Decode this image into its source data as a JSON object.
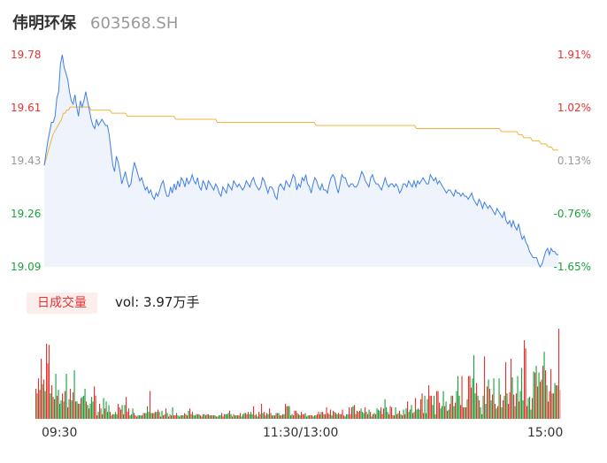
{
  "header": {
    "name": "伟明环保",
    "code": "603568.SH"
  },
  "colors": {
    "up": "#e8322f",
    "down": "#1aa23a",
    "neutral": "#999999",
    "price_line": "#3f7fe6",
    "avg_line": "#f2b33d",
    "area_fill": "#eef3fc"
  },
  "volume_panel": {
    "tab_label": "日成交量",
    "summary": "vol: 3.97万手"
  },
  "chart_data": [
    {
      "type": "line",
      "title": "",
      "y_left_ticks": [
        "19.78",
        "19.61",
        "19.43",
        "19.26",
        "19.09"
      ],
      "y_right_ticks": [
        "1.91%",
        "1.02%",
        "0.13%",
        "-0.76%",
        "-1.65%"
      ],
      "ylim": [
        19.09,
        19.78
      ],
      "prev_close": 19.405,
      "x_ticks": [
        "09:30",
        "11:30/13:00",
        "15:00"
      ],
      "grid": false,
      "series": [
        {
          "role": "price",
          "values": [
            19.42,
            19.46,
            19.5,
            19.53,
            19.56,
            19.56,
            19.58,
            19.64,
            19.66,
            19.75,
            19.78,
            19.74,
            19.72,
            19.7,
            19.66,
            19.63,
            19.62,
            19.65,
            19.61,
            19.58,
            19.63,
            19.61,
            19.63,
            19.66,
            19.63,
            19.6,
            19.57,
            19.55,
            19.54,
            19.57,
            19.55,
            19.56,
            19.57,
            19.56,
            19.55,
            19.55,
            19.52,
            19.47,
            19.42,
            19.4,
            19.45,
            19.43,
            19.4,
            19.36,
            19.38,
            19.4,
            19.37,
            19.35,
            19.36,
            19.4,
            19.43,
            19.41,
            19.39,
            19.37,
            19.38,
            19.36,
            19.34,
            19.35,
            19.33,
            19.34,
            19.32,
            19.31,
            19.33,
            19.32,
            19.34,
            19.36,
            19.37,
            19.34,
            19.32,
            19.32,
            19.35,
            19.33,
            19.36,
            19.34,
            19.37,
            19.35,
            19.38,
            19.37,
            19.35,
            19.38,
            19.36,
            19.37,
            19.39,
            19.37,
            19.36,
            19.38,
            19.35,
            19.34,
            19.37,
            19.36,
            19.34,
            19.37,
            19.36,
            19.35,
            19.34,
            19.36,
            19.35,
            19.33,
            19.32,
            19.35,
            19.34,
            19.33,
            19.36,
            19.35,
            19.34,
            19.37,
            19.36,
            19.35,
            19.36,
            19.35,
            19.34,
            19.35,
            19.37,
            19.36,
            19.35,
            19.37,
            19.38,
            19.36,
            19.35,
            19.34,
            19.35,
            19.38,
            19.37,
            19.35,
            19.33,
            19.35,
            19.35,
            19.34,
            19.32,
            19.31,
            19.35,
            19.36,
            19.35,
            19.34,
            19.37,
            19.36,
            19.35,
            19.37,
            19.39,
            19.38,
            19.34,
            19.36,
            19.35,
            19.38,
            19.37,
            19.39,
            19.36,
            19.35,
            19.33,
            19.36,
            19.38,
            19.37,
            19.35,
            19.34,
            19.36,
            19.34,
            19.34,
            19.33,
            19.36,
            19.38,
            19.39,
            19.38,
            19.35,
            19.33,
            19.36,
            19.39,
            19.38,
            19.38,
            19.36,
            19.35,
            19.36,
            19.36,
            19.35,
            19.35,
            19.36,
            19.38,
            19.4,
            19.39,
            19.37,
            19.36,
            19.35,
            19.38,
            19.39,
            19.37,
            19.36,
            19.36,
            19.35,
            19.34,
            19.36,
            19.38,
            19.36,
            19.35,
            19.36,
            19.36,
            19.35,
            19.36,
            19.35,
            19.33,
            19.34,
            19.36,
            19.36,
            19.35,
            19.37,
            19.36,
            19.35,
            19.37,
            19.35,
            19.37,
            19.36,
            19.37,
            19.38,
            19.37,
            19.36,
            19.36,
            19.39,
            19.38,
            19.37,
            19.38,
            19.36,
            19.37,
            19.36,
            19.35,
            19.34,
            19.33,
            19.34,
            19.34,
            19.33,
            19.32,
            19.34,
            19.33,
            19.33,
            19.32,
            19.33,
            19.32,
            19.32,
            19.31,
            19.32,
            19.33,
            19.31,
            19.3,
            19.29,
            19.31,
            19.3,
            19.28,
            19.3,
            19.29,
            19.28,
            19.29,
            19.28,
            19.27,
            19.26,
            19.28,
            19.27,
            19.26,
            19.25,
            19.27,
            19.24,
            19.23,
            19.24,
            19.22,
            19.24,
            19.22,
            19.21,
            19.23,
            19.2,
            19.18,
            19.19,
            19.17,
            19.16,
            19.14,
            19.13,
            19.12,
            19.12,
            19.12,
            19.1,
            19.09,
            19.1,
            19.12,
            19.14,
            19.15,
            19.13,
            19.15,
            19.14,
            19.14,
            19.13,
            19.13
          ]
        },
        {
          "role": "average",
          "values": [
            19.42,
            19.44,
            19.46,
            19.48,
            19.5,
            19.52,
            19.53,
            19.54,
            19.55,
            19.56,
            19.57,
            19.59,
            19.59,
            19.6,
            19.6,
            19.61,
            19.61,
            19.61,
            19.61,
            19.61,
            19.61,
            19.61,
            19.61,
            19.61,
            19.61,
            19.61,
            19.61,
            19.6,
            19.6,
            19.6,
            19.6,
            19.6,
            19.6,
            19.6,
            19.6,
            19.6,
            19.6,
            19.6,
            19.6,
            19.59,
            19.59,
            19.59,
            19.59,
            19.59,
            19.59,
            19.59,
            19.59,
            19.59,
            19.58,
            19.58,
            19.58,
            19.58,
            19.58,
            19.58,
            19.58,
            19.58,
            19.58,
            19.58,
            19.58,
            19.58,
            19.58,
            19.58,
            19.58,
            19.58,
            19.58,
            19.58,
            19.58,
            19.58,
            19.58,
            19.58,
            19.58,
            19.58,
            19.58,
            19.58,
            19.58,
            19.58,
            19.57,
            19.57,
            19.57,
            19.57,
            19.57,
            19.57,
            19.57,
            19.57,
            19.57,
            19.57,
            19.57,
            19.57,
            19.57,
            19.57,
            19.57,
            19.57,
            19.57,
            19.57,
            19.57,
            19.57,
            19.57,
            19.57,
            19.57,
            19.57,
            19.56,
            19.56,
            19.56,
            19.56,
            19.56,
            19.56,
            19.56,
            19.56,
            19.56,
            19.56,
            19.56,
            19.56,
            19.56,
            19.56,
            19.56,
            19.56,
            19.56,
            19.56,
            19.56,
            19.56,
            19.56,
            19.56,
            19.56,
            19.56,
            19.56,
            19.56,
            19.56,
            19.56,
            19.56,
            19.56,
            19.56,
            19.56,
            19.56,
            19.56,
            19.56,
            19.56,
            19.56,
            19.56,
            19.56,
            19.56,
            19.56,
            19.56,
            19.56,
            19.56,
            19.56,
            19.56,
            19.56,
            19.56,
            19.56,
            19.56,
            19.56,
            19.56,
            19.56,
            19.56,
            19.56,
            19.56,
            19.56,
            19.55,
            19.55,
            19.55,
            19.55,
            19.55,
            19.55,
            19.55,
            19.55,
            19.55,
            19.55,
            19.55,
            19.55,
            19.55,
            19.55,
            19.55,
            19.55,
            19.55,
            19.55,
            19.55,
            19.55,
            19.55,
            19.55,
            19.55,
            19.55,
            19.55,
            19.55,
            19.55,
            19.55,
            19.55,
            19.55,
            19.55,
            19.55,
            19.55,
            19.55,
            19.55,
            19.55,
            19.55,
            19.55,
            19.55,
            19.55,
            19.55,
            19.55,
            19.55,
            19.55,
            19.55,
            19.55,
            19.55,
            19.55,
            19.55,
            19.55,
            19.55,
            19.55,
            19.55,
            19.55,
            19.55,
            19.55,
            19.55,
            19.55,
            19.54,
            19.54,
            19.54,
            19.54,
            19.54,
            19.54,
            19.54,
            19.54,
            19.54,
            19.54,
            19.54,
            19.54,
            19.54,
            19.54,
            19.54,
            19.54,
            19.54,
            19.54,
            19.54,
            19.54,
            19.54,
            19.54,
            19.54,
            19.54,
            19.54,
            19.54,
            19.54,
            19.54,
            19.54,
            19.54,
            19.54,
            19.54,
            19.54,
            19.54,
            19.54,
            19.54,
            19.54,
            19.54,
            19.54,
            19.54,
            19.54,
            19.54,
            19.54,
            19.54,
            19.54,
            19.54,
            19.54,
            19.54,
            19.54,
            19.53,
            19.53,
            19.53,
            19.53,
            19.53,
            19.53,
            19.53,
            19.53,
            19.53,
            19.53,
            19.52,
            19.52,
            19.52,
            19.51,
            19.51,
            19.51,
            19.51,
            19.51,
            19.5,
            19.5,
            19.5,
            19.5,
            19.5,
            19.49,
            19.49,
            19.49,
            19.49,
            19.48,
            19.48,
            19.48,
            19.47,
            19.47,
            19.47,
            19.47
          ]
        }
      ]
    },
    {
      "type": "bar",
      "title": "",
      "series": [
        {
          "role": "volume",
          "values": [
            26,
            22,
            35,
            25,
            52,
            30,
            34,
            24,
            65,
            48,
            64,
            22,
            29,
            19,
            17,
            39,
            20,
            25,
            13,
            16,
            22,
            15,
            24,
            39,
            10,
            17,
            26,
            16,
            23,
            42,
            15,
            15,
            13,
            13,
            18,
            19,
            20,
            26,
            15,
            12,
            9,
            13,
            19,
            15,
            28,
            20,
            3,
            6,
            13,
            9,
            4,
            18,
            9,
            15,
            6,
            12,
            6,
            3,
            4,
            4,
            6,
            4,
            13,
            10,
            8,
            12,
            4,
            12,
            19,
            6,
            9,
            3,
            4,
            9,
            5,
            3,
            2,
            3,
            3,
            3,
            3,
            5,
            5,
            5,
            11,
            6,
            24,
            5,
            5,
            5,
            6,
            6,
            8,
            6,
            2,
            7,
            3,
            4,
            9,
            5,
            2,
            4,
            3,
            10,
            3,
            3,
            5,
            3,
            2,
            3,
            3,
            3,
            5,
            4,
            3,
            7,
            9,
            4,
            6,
            3,
            3,
            4,
            4,
            4,
            3,
            2,
            4,
            4,
            3,
            4,
            4,
            3,
            3,
            3,
            3,
            3,
            2,
            2,
            3,
            3,
            5,
            2,
            4,
            4,
            4,
            5,
            7,
            4,
            2,
            4,
            3,
            3,
            3,
            3,
            5,
            2,
            4,
            5,
            5,
            4,
            6,
            4,
            6,
            4,
            11,
            3,
            4,
            2,
            6,
            4,
            13,
            5,
            6,
            3,
            5,
            4,
            9,
            5,
            3,
            3,
            3,
            5,
            5,
            5,
            3,
            3,
            4,
            4,
            13,
            11,
            11,
            11,
            3,
            4,
            3,
            7,
            7,
            5,
            4,
            3,
            6,
            4,
            4,
            5,
            2,
            3,
            3,
            3,
            3,
            2,
            3,
            3,
            4,
            6,
            4,
            6,
            6,
            4,
            4,
            10,
            5,
            4,
            8,
            3,
            7,
            6,
            5,
            4,
            5,
            4,
            4,
            8,
            3,
            2,
            4,
            4,
            10,
            4,
            10,
            11,
            12,
            4,
            7,
            6,
            7,
            9,
            6,
            5,
            10,
            6,
            4,
            8,
            6,
            2,
            4,
            5,
            4,
            9,
            8,
            7,
            10,
            4,
            9,
            17,
            10,
            6,
            4,
            11,
            10,
            3,
            3,
            10,
            4,
            5,
            7,
            4,
            3,
            8,
            4,
            9,
            15,
            6,
            8,
            12,
            5,
            6,
            18,
            8,
            9,
            8,
            17,
            22,
            5,
            20,
            5,
            17,
            29,
            20,
            20,
            12,
            20,
            4,
            24,
            24,
            14,
            9,
            11,
            24,
            11,
            15,
            7,
            8,
            13,
            20,
            20,
            11,
            14,
            24,
            37,
            20,
            12,
            37,
            10,
            10,
            10,
            17,
            37,
            37,
            27,
            35,
            55,
            22,
            31,
            20,
            16,
            10,
            4,
            20,
            54,
            13,
            28,
            34,
            26,
            16,
            21,
            35,
            13,
            9,
            11,
            35,
            21,
            10,
            16,
            20,
            49,
            22,
            13,
            23,
            52,
            36,
            21,
            11,
            22,
            37,
            15,
            24,
            44,
            16,
            68,
            61,
            11,
            18,
            19,
            8,
            18,
            41,
            40,
            46,
            28,
            40,
            32,
            34,
            46,
            58,
            42,
            29,
            15,
            24,
            43,
            22,
            22,
            31,
            29,
            29,
            78,
            25
          ]
        }
      ]
    }
  ]
}
